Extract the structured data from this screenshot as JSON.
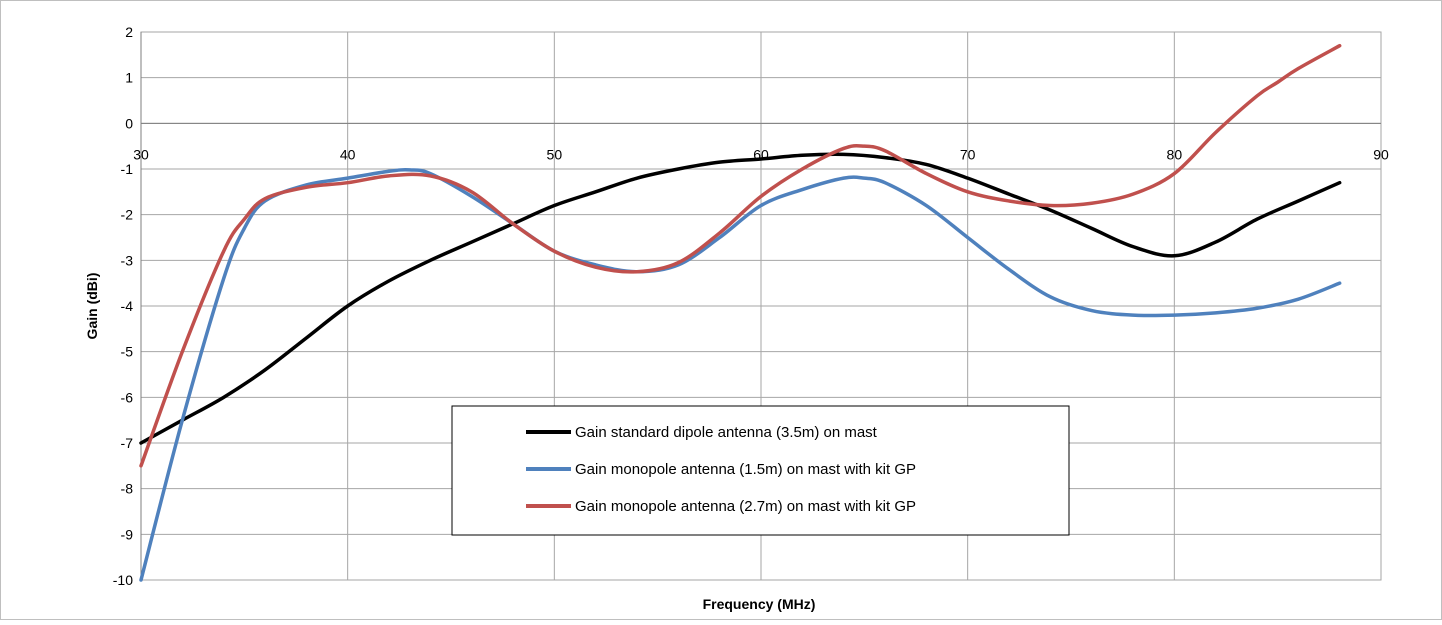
{
  "chart_data": {
    "type": "line",
    "title": "",
    "xlabel": "Frequency (MHz)",
    "ylabel": "Gain  (dBi)",
    "xlim": [
      30,
      90
    ],
    "ylim": [
      -10,
      2
    ],
    "x_ticks": [
      "30",
      "40",
      "50",
      "60",
      "70",
      "80",
      "90"
    ],
    "y_ticks": [
      "2",
      "1",
      "0",
      "-1",
      "-2",
      "-3",
      "-4",
      "-5",
      "-6",
      "-7",
      "-8",
      "-9",
      "-10"
    ],
    "grid": true,
    "legend_position": "bottom-center",
    "series": [
      {
        "name": "Gain standard dipole antenna (3.5m) on mast",
        "color": "#000000",
        "x": [
          30,
          32,
          34,
          36,
          38,
          40,
          42,
          44,
          46,
          48,
          50,
          52,
          54,
          56,
          58,
          60,
          62,
          64,
          66,
          68,
          70,
          72,
          74,
          76,
          78,
          80,
          82,
          84,
          86,
          88
        ],
        "y": [
          -7.0,
          -6.5,
          -6.0,
          -5.4,
          -4.7,
          -4.0,
          -3.45,
          -3.0,
          -2.6,
          -2.2,
          -1.8,
          -1.5,
          -1.2,
          -1.0,
          -0.85,
          -0.78,
          -0.7,
          -0.68,
          -0.75,
          -0.9,
          -1.2,
          -1.55,
          -1.9,
          -2.3,
          -2.7,
          -2.9,
          -2.6,
          -2.1,
          -1.7,
          -1.3
        ]
      },
      {
        "name": "Gain monopole antenna (1.5m) on mast with kit GP",
        "color": "#4F81BD",
        "x": [
          30,
          32,
          34,
          35,
          36,
          38,
          40,
          42,
          43,
          44,
          46,
          48,
          50,
          52,
          54,
          56,
          58,
          60,
          62,
          64,
          65,
          66,
          68,
          70,
          72,
          74,
          76,
          78,
          80,
          82,
          84,
          86,
          88
        ],
        "y": [
          -10.0,
          -6.5,
          -3.4,
          -2.3,
          -1.7,
          -1.35,
          -1.2,
          -1.05,
          -1.02,
          -1.1,
          -1.6,
          -2.2,
          -2.8,
          -3.1,
          -3.25,
          -3.1,
          -2.5,
          -1.8,
          -1.45,
          -1.2,
          -1.2,
          -1.3,
          -1.8,
          -2.5,
          -3.2,
          -3.8,
          -4.1,
          -4.2,
          -4.2,
          -4.15,
          -4.05,
          -3.85,
          -3.5
        ]
      },
      {
        "name": "Gain monopole antenna (2.7m) on mast with kit GP",
        "color": "#C0504D",
        "x": [
          30,
          32,
          34,
          35,
          36,
          38,
          40,
          42,
          44,
          46,
          48,
          50,
          52,
          54,
          56,
          58,
          60,
          62,
          64,
          65,
          66,
          68,
          70,
          72,
          74,
          76,
          78,
          80,
          82,
          84,
          85,
          86,
          88
        ],
        "y": [
          -7.5,
          -5.0,
          -2.8,
          -2.1,
          -1.65,
          -1.4,
          -1.3,
          -1.15,
          -1.15,
          -1.5,
          -2.2,
          -2.8,
          -3.15,
          -3.25,
          -3.05,
          -2.4,
          -1.6,
          -1.0,
          -0.55,
          -0.5,
          -0.6,
          -1.1,
          -1.5,
          -1.7,
          -1.8,
          -1.75,
          -1.55,
          -1.1,
          -0.2,
          0.6,
          0.9,
          1.2,
          1.7
        ]
      }
    ]
  }
}
